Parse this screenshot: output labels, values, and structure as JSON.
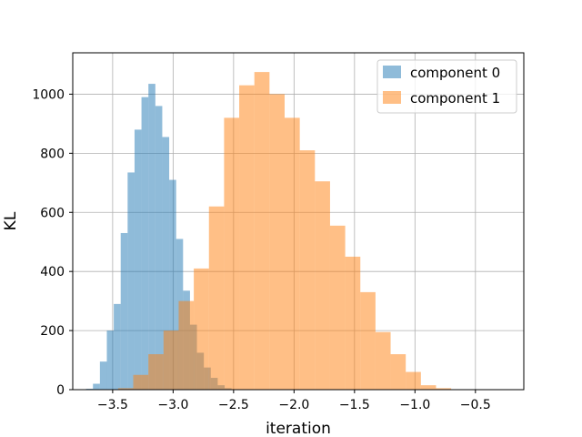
{
  "chart_data": {
    "type": "bar",
    "subtype": "histogram",
    "title": "",
    "xlabel": "iteration",
    "ylabel": "KL",
    "xlim": [
      -3.83,
      -0.1
    ],
    "ylim": [
      0,
      1140
    ],
    "xticks": [
      -3.5,
      -3.0,
      -2.5,
      -2.0,
      -1.5,
      -1.0,
      -0.5
    ],
    "xtick_labels": [
      "−3.5",
      "−3.0",
      "−2.5",
      "−2.0",
      "−1.5",
      "−1.0",
      "−0.5"
    ],
    "yticks": [
      0,
      200,
      400,
      600,
      800,
      1000
    ],
    "ytick_labels": [
      "0",
      "200",
      "400",
      "600",
      "800",
      "1000"
    ],
    "grid": true,
    "legend": {
      "position": "top-right"
    },
    "series": [
      {
        "name": "component 0",
        "color": "#1f77b4",
        "alpha": 0.5,
        "bin_start": -3.72,
        "bin_width": 0.0573,
        "counts": [
          3,
          20,
          95,
          200,
          290,
          530,
          735,
          880,
          990,
          1035,
          960,
          855,
          710,
          510,
          335,
          220,
          125,
          75,
          40,
          15,
          5
        ]
      },
      {
        "name": "component 1",
        "color": "#ff7f0e",
        "alpha": 0.5,
        "bin_start": -3.455,
        "bin_width": 0.1252,
        "counts": [
          5,
          50,
          120,
          200,
          300,
          410,
          620,
          920,
          1030,
          1075,
          1000,
          920,
          810,
          705,
          555,
          450,
          330,
          195,
          120,
          60,
          15,
          5
        ]
      }
    ]
  }
}
